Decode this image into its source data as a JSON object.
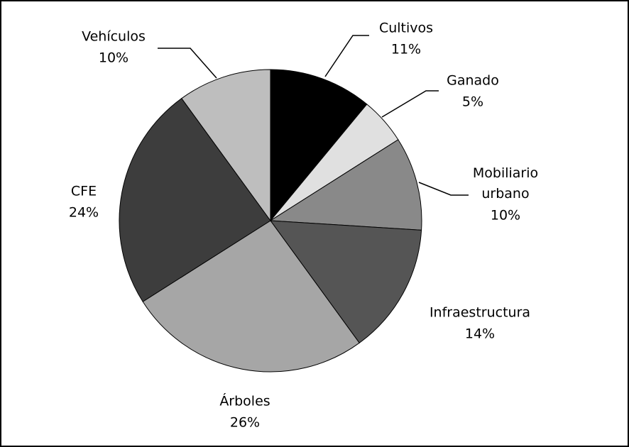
{
  "chart_data": {
    "type": "pie",
    "categories": [
      "Cultivos",
      "Ganado",
      "Mobiliario urbano",
      "Infraestructura",
      "Árboles",
      "CFE",
      "Vehículos"
    ],
    "values": [
      11,
      5,
      10,
      14,
      26,
      24,
      10
    ],
    "value_labels": [
      "11%",
      "5%",
      "10%",
      "14%",
      "26%",
      "24%",
      "10%"
    ],
    "colors": [
      "#000000",
      "#e0e0e0",
      "#898989",
      "#555555",
      "#a6a6a6",
      "#3d3d3d",
      "#bebebe"
    ]
  }
}
